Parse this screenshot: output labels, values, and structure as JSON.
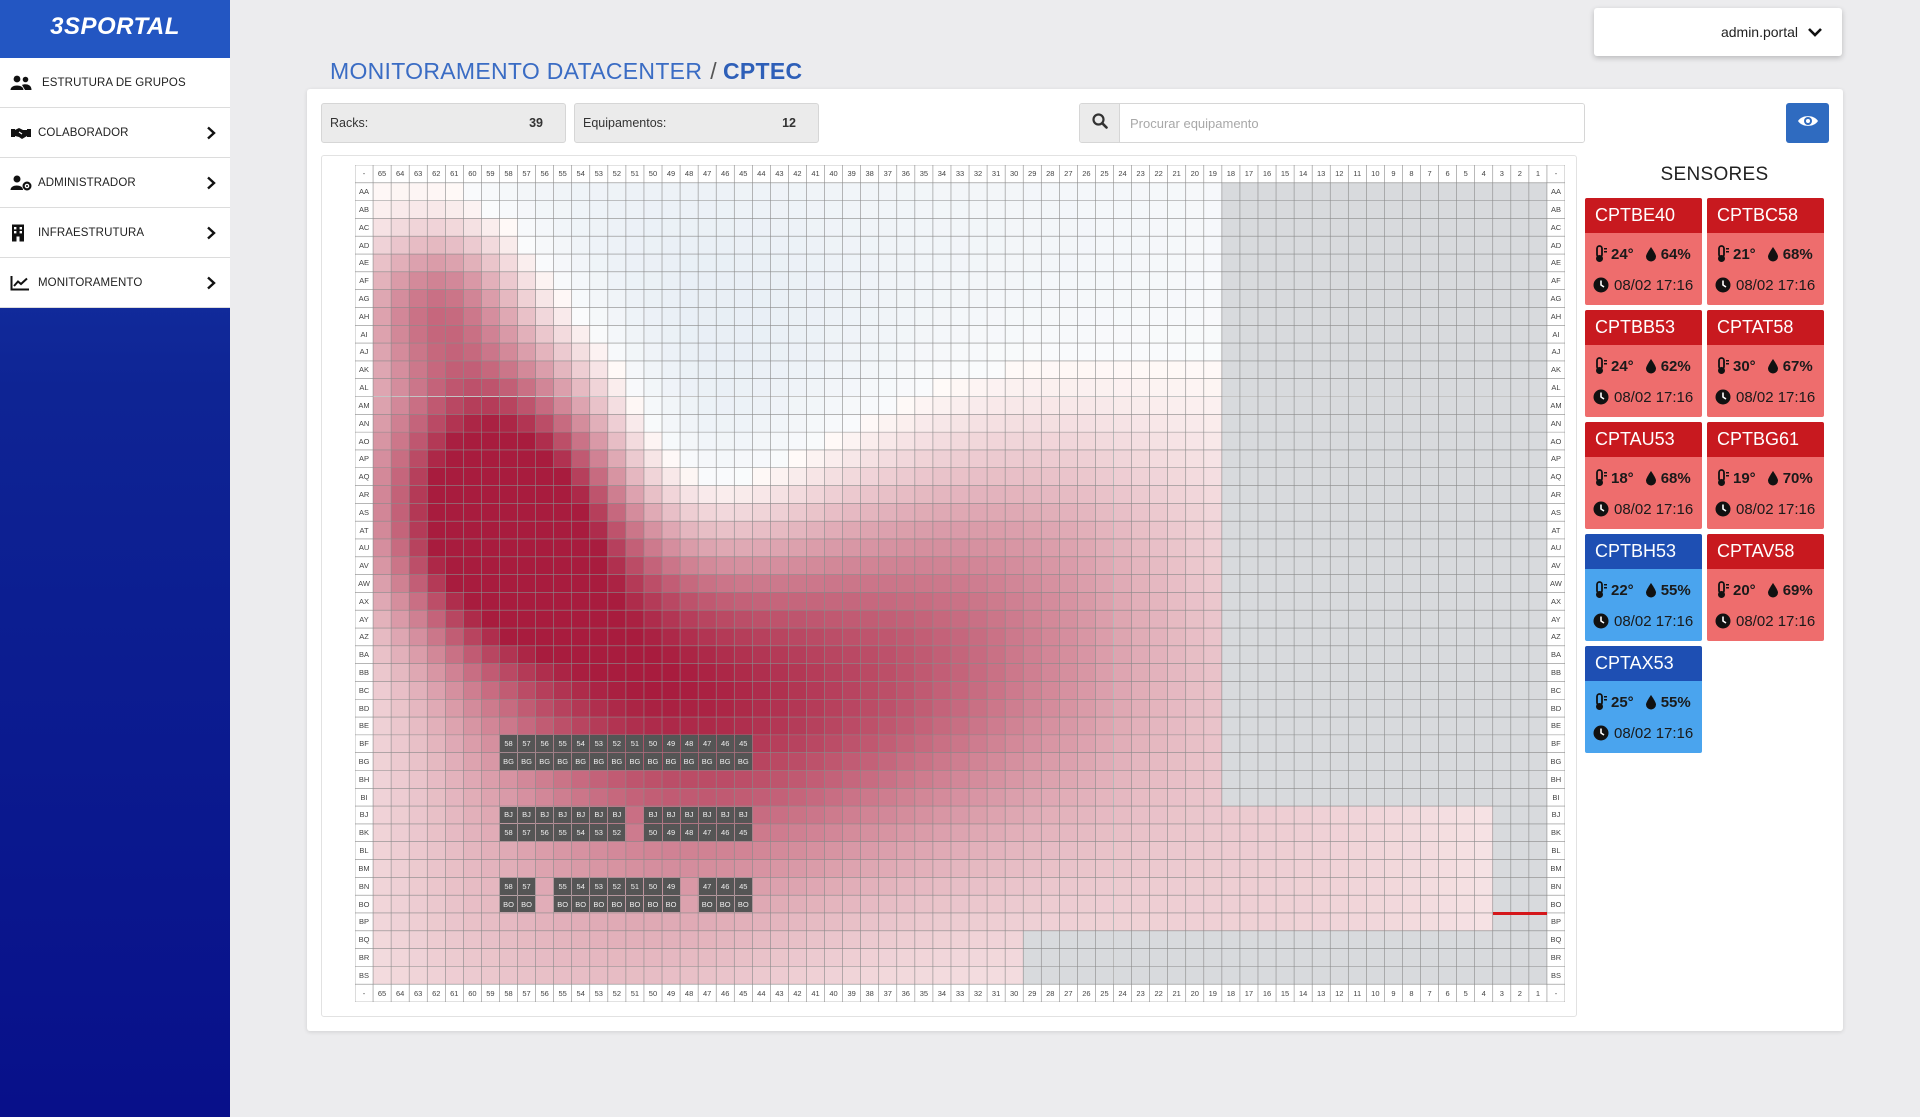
{
  "brand": "3SPORTAL",
  "menu": [
    {
      "label": "ESTRUTURA DE GRUPOS",
      "icon": "users-icon",
      "chevron": false
    },
    {
      "label": "COLABORADOR",
      "icon": "handshake-icon",
      "chevron": true
    },
    {
      "label": "ADMINISTRADOR",
      "icon": "user-gear-icon",
      "chevron": true
    },
    {
      "label": "INFRAESTRUTURA",
      "icon": "building-icon",
      "chevron": true
    },
    {
      "label": "MONITORAMENTO",
      "icon": "chart-line-icon",
      "chevron": true
    }
  ],
  "user": {
    "name": "admin.portal",
    "icon": "chevron-down-icon"
  },
  "title": {
    "section": "MONITORAMENTO DATACENTER",
    "separator": "/",
    "site": "CPTEC"
  },
  "stats": {
    "racks_label": "Racks:",
    "racks_value": "39",
    "equip_label": "Equipamentos:",
    "equip_value": "12"
  },
  "search": {
    "placeholder": "Procurar equipamento",
    "value": ""
  },
  "grid": {
    "columns": [
      "-",
      "65",
      "64",
      "63",
      "62",
      "61",
      "60",
      "59",
      "58",
      "57",
      "56",
      "55",
      "54",
      "53",
      "52",
      "51",
      "50",
      "49",
      "48",
      "47",
      "46",
      "45",
      "44",
      "43",
      "42",
      "41",
      "40",
      "39",
      "38",
      "37",
      "36",
      "35",
      "34",
      "33",
      "32",
      "31",
      "30",
      "29",
      "28",
      "27",
      "26",
      "25",
      "24",
      "23",
      "22",
      "21",
      "20",
      "19",
      "18",
      "17",
      "16",
      "15",
      "14",
      "13",
      "12",
      "11",
      "10",
      "9",
      "8",
      "7",
      "6",
      "5",
      "4",
      "3",
      "2",
      "1",
      "-"
    ],
    "rows": [
      "AA",
      "AB",
      "AC",
      "AD",
      "AE",
      "AF",
      "AG",
      "AH",
      "AI",
      "AJ",
      "AK",
      "AL",
      "AM",
      "AN",
      "AO",
      "AP",
      "AQ",
      "AR",
      "AS",
      "AT",
      "AU",
      "AV",
      "AW",
      "AX",
      "AY",
      "AZ",
      "BA",
      "BB",
      "BC",
      "BD",
      "BE",
      "BF",
      "BG",
      "BH",
      "BI",
      "BJ",
      "BK",
      "BL",
      "BM",
      "BN",
      "BO",
      "BP",
      "BQ",
      "BR",
      "BS"
    ],
    "racks": [
      {
        "row_top": "BF",
        "row_bottom": "BG",
        "cols": [
          "58",
          "57",
          "56",
          "55",
          "54",
          "53",
          "52",
          "51",
          "50",
          "49",
          "48",
          "47",
          "46",
          "45"
        ],
        "top_label": "col",
        "bottom_label": "BG"
      },
      {
        "row_top": "BJ",
        "row_bottom": "BK",
        "cols": [
          "58",
          "57",
          "56",
          "55",
          "54",
          "53",
          "52"
        ],
        "top_label": "BJ",
        "bottom_label": "col"
      },
      {
        "row_top": "BJ",
        "row_bottom": "BK",
        "cols": [
          "50",
          "49",
          "48",
          "47",
          "46",
          "45"
        ],
        "top_label": "BJ",
        "bottom_label": "col"
      },
      {
        "row_top": "BN",
        "row_bottom": "BO",
        "cols": [
          "58",
          "57"
        ],
        "top_label": "col",
        "bottom_label": "BO"
      },
      {
        "row_top": "BN",
        "row_bottom": "BO",
        "cols": [
          "55",
          "54",
          "53",
          "52",
          "51",
          "50",
          "49"
        ],
        "top_label": "col",
        "bottom_label": "BO"
      },
      {
        "row_top": "BN",
        "row_bottom": "BO",
        "cols": [
          "47",
          "46",
          "45"
        ],
        "top_label": "col",
        "bottom_label": "BO"
      }
    ],
    "gray_zones": [
      {
        "cols_from": "18",
        "cols_to": "1",
        "rows_from": "AA",
        "rows_to": "BI"
      },
      {
        "cols_from": "3",
        "cols_to": "1",
        "rows_from": "BJ",
        "rows_to": "BS"
      },
      {
        "cols_from": "29",
        "cols_to": "4",
        "rows_from": "BQ",
        "rows_to": "BS"
      }
    ],
    "alert_line": {
      "row": "BP",
      "cols_from": "3",
      "cols_to": "1",
      "color": "#d4171b"
    }
  },
  "sensors_title": "SENSORES",
  "sensors": [
    {
      "name": "CPTBE40",
      "temp": "24°",
      "humidity": "64%",
      "time": "08/02 17:16",
      "status": "hot"
    },
    {
      "name": "CPTBC58",
      "temp": "21°",
      "humidity": "68%",
      "time": "08/02 17:16",
      "status": "hot"
    },
    {
      "name": "CPTBB53",
      "temp": "24°",
      "humidity": "62%",
      "time": "08/02 17:16",
      "status": "hot"
    },
    {
      "name": "CPTAT58",
      "temp": "30°",
      "humidity": "67%",
      "time": "08/02 17:16",
      "status": "hot"
    },
    {
      "name": "CPTAU53",
      "temp": "18°",
      "humidity": "68%",
      "time": "08/02 17:16",
      "status": "hot"
    },
    {
      "name": "CPTBG61",
      "temp": "19°",
      "humidity": "70%",
      "time": "08/02 17:16",
      "status": "hot"
    },
    {
      "name": "CPTBH53",
      "temp": "22°",
      "humidity": "55%",
      "time": "08/02 17:16",
      "status": "cool"
    },
    {
      "name": "CPTAV58",
      "temp": "20°",
      "humidity": "69%",
      "time": "08/02 17:16",
      "status": "hot"
    },
    {
      "name": "CPTAX53",
      "temp": "25°",
      "humidity": "55%",
      "time": "08/02 17:16",
      "status": "cool"
    }
  ],
  "colors": {
    "hot_head": "#c8191f",
    "hot_body": "#ee6d6d",
    "cool_head": "#1e4fb3",
    "cool_body": "#4aa4ee",
    "accent": "#2f6bc0",
    "grid_line": "#8a8a8a",
    "gray_zone": "#d8dadd"
  }
}
